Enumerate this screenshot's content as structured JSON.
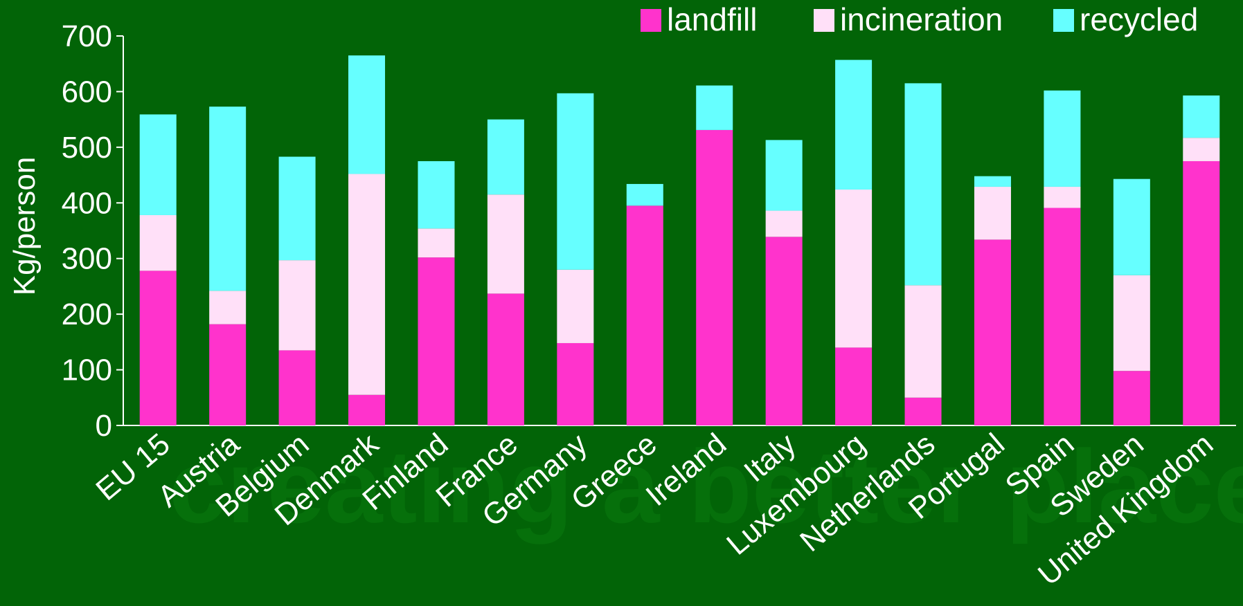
{
  "watermark": "creating a better place",
  "chart_data": {
    "type": "bar",
    "stacked": true,
    "ylabel": "Kg/person",
    "ylim": [
      0,
      700
    ],
    "yticks": [
      0,
      100,
      200,
      300,
      400,
      500,
      600,
      700
    ],
    "grid": false,
    "legend_position": "top-right",
    "categories": [
      "EU 15",
      "Austria",
      "Belgium",
      "Denmark",
      "Finland",
      "France",
      "Germany",
      "Greece",
      "Ireland",
      "Italy",
      "Luxembourg",
      "Netherlands",
      "Portugal",
      "Spain",
      "Sweden",
      "United Kingdom"
    ],
    "series": [
      {
        "name": "landfill",
        "color": "#ff33cc",
        "values": [
          278,
          182,
          135,
          55,
          302,
          237,
          148,
          395,
          531,
          339,
          140,
          50,
          334,
          391,
          98,
          475
        ]
      },
      {
        "name": "incineration",
        "color": "#ffe0f8",
        "values": [
          100,
          60,
          162,
          397,
          52,
          178,
          132,
          0,
          0,
          47,
          284,
          202,
          95,
          38,
          172,
          42
        ]
      },
      {
        "name": "recycled",
        "color": "#66ffff",
        "values": [
          181,
          331,
          186,
          213,
          121,
          135,
          317,
          39,
          80,
          127,
          233,
          363,
          19,
          173,
          173,
          76
        ]
      }
    ]
  }
}
